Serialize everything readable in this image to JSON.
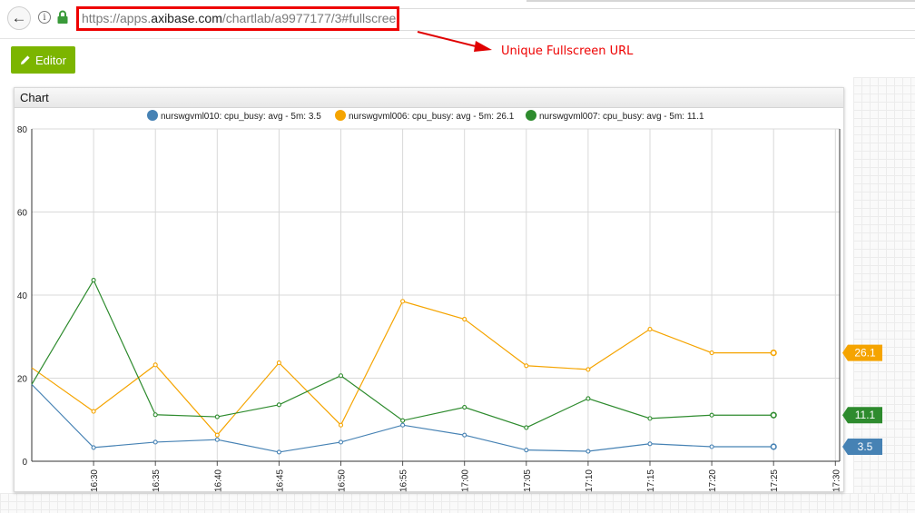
{
  "browser": {
    "back_icon": "back-arrow-icon",
    "info_icon": "info-icon",
    "info_glyph": "i",
    "lock_icon": "lock-icon",
    "url_prefix": "https://apps.",
    "url_domain": "axibase.com",
    "url_path": "/chartlab/a9977177/3#fullscreen"
  },
  "annotation": {
    "text": "Unique Fullscreen URL",
    "color": "#e00000"
  },
  "toolbar": {
    "editor_label": "Editor",
    "editor_icon": "pencil-icon",
    "editor_color": "#7cb500"
  },
  "panel": {
    "title": "Chart"
  },
  "chart_data": {
    "type": "line",
    "ylim": [
      0,
      80
    ],
    "yticks": [
      "0",
      "20",
      "40",
      "60",
      "80"
    ],
    "xticks": [
      "16:30",
      "16:35",
      "16:40",
      "16:45",
      "16:50",
      "16:55",
      "17:00",
      "17:05",
      "17:10",
      "17:15",
      "17:20",
      "17:25",
      "17:30"
    ],
    "x": [
      "16:25",
      "16:30",
      "16:35",
      "16:40",
      "16:45",
      "16:50",
      "16:55",
      "17:00",
      "17:05",
      "17:10",
      "17:15",
      "17:20",
      "17:25"
    ],
    "grid": true,
    "legend_position": "top",
    "series": [
      {
        "name": "nurswgvml010: cpu_busy: avg - 5m: 3.5",
        "color": "#4682b4",
        "values": [
          18.5,
          3.3,
          4.6,
          5.2,
          2.2,
          4.6,
          8.7,
          6.3,
          2.7,
          2.4,
          4.2,
          3.5,
          3.5
        ],
        "last_label": "3.5"
      },
      {
        "name": "nurswgvml006: cpu_busy: avg - 5m: 26.1",
        "color": "#f5a400",
        "values": [
          22.5,
          12.0,
          23.2,
          6.3,
          23.7,
          8.7,
          38.5,
          34.2,
          23.0,
          22.1,
          31.8,
          26.1,
          26.1
        ],
        "last_label": "26.1"
      },
      {
        "name": "nurswgvml007: cpu_busy: avg - 5m: 11.1",
        "color": "#2e8b2e",
        "values": [
          18.5,
          43.6,
          11.2,
          10.7,
          13.6,
          20.6,
          9.8,
          13.0,
          8.1,
          15.1,
          10.3,
          11.1,
          11.1
        ],
        "last_label": "11.1"
      }
    ]
  }
}
